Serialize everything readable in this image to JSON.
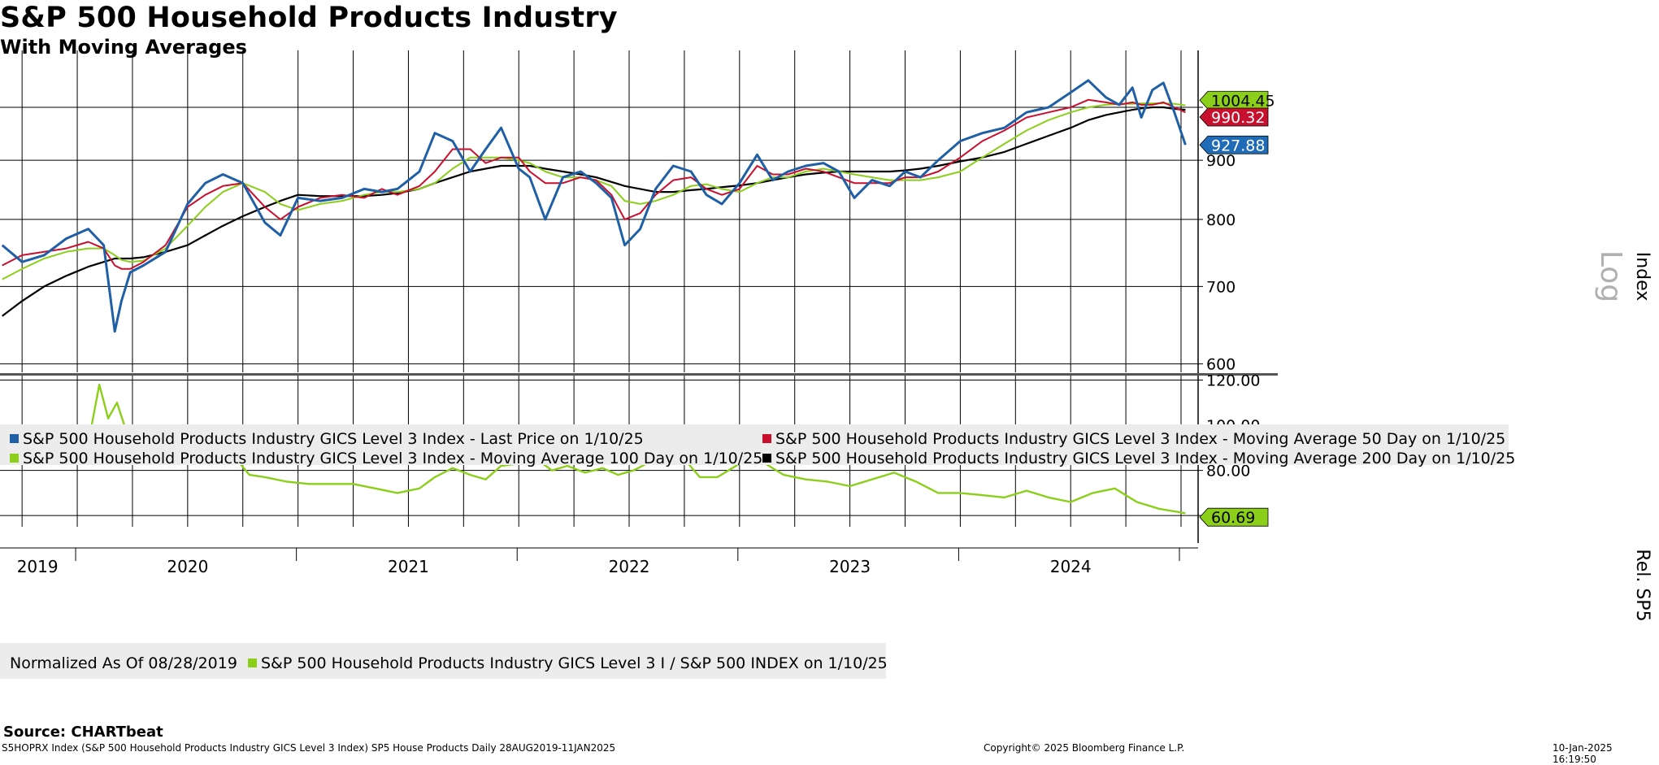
{
  "header": {
    "title": "S&P 500 Household Products Industry",
    "subtitle": "With Moving Averages",
    "source": "Source: CHARTbeat"
  },
  "footer": {
    "left": "S5HOPRX Index (S&P 500 Household Products Industry GICS Level 3 Index) SP5 House Products  Daily 28AUG2019-11JAN2025",
    "center": "Copyright© 2025 Bloomberg Finance L.P.",
    "right": "10-Jan-2025 16:19:50"
  },
  "chart_data": [
    {
      "type": "line",
      "panel": "price",
      "ylabel": "Index",
      "scale_label": "Log",
      "yscale": "log",
      "ylim": [
        590,
        1120
      ],
      "yticks": [
        600,
        700,
        800,
        900
      ],
      "x_year_labels": [
        "2019",
        "2020",
        "2021",
        "2022",
        "2023",
        "2024"
      ],
      "value_labels": [
        {
          "text": "1004.45",
          "series": "ma100",
          "color": "#8ccf1a"
        },
        {
          "text": "990.32",
          "series": "ma50",
          "color": "#c8102e"
        },
        {
          "text": "927.88",
          "series": "last",
          "color": "#1f6bb5"
        }
      ],
      "legend": [
        {
          "label": "S&P 500 Household Products Industry GICS Level 3 Index - Last Price on 1/10/25",
          "color": "#1f5fa6"
        },
        {
          "label": "S&P 500 Household Products Industry GICS Level 3 Index - Moving Average 50 Day on 1/10/25",
          "color": "#c8102e"
        },
        {
          "label": "S&P 500 Household Products Industry GICS Level 3 Index - Moving Average 100 Day on 1/10/25",
          "color": "#8ccf1a"
        },
        {
          "label": "S&P 500 Household Products Industry GICS Level 3 Index - Moving Average 200 Day on 1/10/25",
          "color": "#000000"
        }
      ],
      "x": [
        2019.66,
        2019.75,
        2019.85,
        2019.95,
        2020.05,
        2020.12,
        2020.17,
        2020.2,
        2020.24,
        2020.3,
        2020.4,
        2020.5,
        2020.58,
        2020.66,
        2020.75,
        2020.85,
        2020.92,
        2021.0,
        2021.1,
        2021.2,
        2021.3,
        2021.38,
        2021.45,
        2021.55,
        2021.62,
        2021.7,
        2021.78,
        2021.85,
        2021.92,
        2022.0,
        2022.05,
        2022.12,
        2022.2,
        2022.28,
        2022.35,
        2022.42,
        2022.48,
        2022.55,
        2022.62,
        2022.7,
        2022.78,
        2022.85,
        2022.92,
        2023.0,
        2023.08,
        2023.15,
        2023.22,
        2023.3,
        2023.38,
        2023.45,
        2023.52,
        2023.6,
        2023.68,
        2023.75,
        2023.82,
        2023.9,
        2024.0,
        2024.1,
        2024.2,
        2024.3,
        2024.4,
        2024.5,
        2024.58,
        2024.66,
        2024.72,
        2024.78,
        2024.82,
        2024.87,
        2024.92,
        2024.97,
        2025.02
      ],
      "series": [
        {
          "name": "Last Price",
          "key": "last",
          "color": "#1f5fa6",
          "values": [
            760,
            735,
            745,
            770,
            785,
            760,
            640,
            680,
            720,
            730,
            750,
            825,
            860,
            875,
            860,
            795,
            775,
            835,
            830,
            835,
            850,
            845,
            850,
            880,
            950,
            935,
            880,
            920,
            960,
            885,
            870,
            800,
            870,
            880,
            860,
            835,
            760,
            785,
            850,
            890,
            880,
            840,
            825,
            860,
            910,
            865,
            880,
            890,
            895,
            880,
            835,
            865,
            855,
            880,
            870,
            900,
            935,
            950,
            960,
            990,
            1000,
            1030,
            1055,
            1020,
            1005,
            1040,
            980,
            1035,
            1050,
            990,
            928
          ]
        },
        {
          "name": "Moving Average 50 Day",
          "key": "ma50",
          "color": "#c8102e",
          "values": [
            730,
            745,
            750,
            755,
            765,
            755,
            730,
            725,
            725,
            735,
            760,
            820,
            840,
            855,
            860,
            820,
            800,
            820,
            835,
            840,
            835,
            850,
            840,
            855,
            880,
            920,
            920,
            895,
            905,
            905,
            880,
            860,
            860,
            870,
            865,
            840,
            800,
            810,
            840,
            865,
            870,
            850,
            840,
            850,
            890,
            875,
            875,
            885,
            880,
            870,
            860,
            860,
            860,
            870,
            870,
            880,
            905,
            935,
            955,
            980,
            990,
            1000,
            1015,
            1010,
            1005,
            1010,
            1005,
            1005,
            1010,
            1000,
            990
          ]
        },
        {
          "name": "Moving Average 100 Day",
          "key": "ma100",
          "color": "#8ccf1a",
          "values": [
            710,
            725,
            740,
            750,
            755,
            755,
            745,
            738,
            735,
            737,
            755,
            790,
            820,
            845,
            860,
            845,
            825,
            815,
            825,
            830,
            840,
            845,
            845,
            850,
            860,
            885,
            905,
            905,
            905,
            900,
            895,
            880,
            870,
            870,
            865,
            855,
            830,
            825,
            830,
            840,
            855,
            858,
            850,
            845,
            860,
            870,
            870,
            880,
            885,
            880,
            875,
            870,
            865,
            865,
            865,
            870,
            880,
            905,
            930,
            955,
            975,
            990,
            1000,
            1005,
            1007,
            1007,
            1008,
            1008,
            1008,
            1007,
            1004
          ]
        },
        {
          "name": "Moving Average 200 Day",
          "key": "ma200",
          "color": "#000000",
          "values": [
            660,
            680,
            700,
            715,
            728,
            735,
            740,
            740,
            740,
            742,
            750,
            760,
            775,
            790,
            805,
            820,
            830,
            840,
            838,
            838,
            838,
            840,
            843,
            850,
            860,
            870,
            880,
            885,
            890,
            890,
            890,
            885,
            880,
            875,
            870,
            862,
            855,
            850,
            845,
            845,
            848,
            850,
            853,
            856,
            860,
            865,
            870,
            875,
            878,
            880,
            880,
            880,
            880,
            882,
            885,
            890,
            898,
            905,
            915,
            930,
            945,
            960,
            975,
            985,
            990,
            995,
            998,
            1000,
            1000,
            997,
            995
          ]
        }
      ]
    },
    {
      "type": "line",
      "panel": "relative",
      "ylabel": "Rel. SP5",
      "ylim": [
        55,
        122
      ],
      "yticks": [
        60.0,
        80.0,
        100.0,
        120.0
      ],
      "ytick_labels": [
        "80.00",
        "100.00",
        "120.00"
      ],
      "value_labels": [
        {
          "text": "60.69",
          "color": "#8ccf1a"
        }
      ],
      "legend_prefix": "Normalized As Of 08/28/2019",
      "legend": [
        {
          "label": "S&P 500 Household Products Industry GICS Level 3 I / S&P 500 INDEX on 1/10/25",
          "color": "#8ccf1a"
        }
      ],
      "x": [
        2019.66,
        2019.75,
        2019.85,
        2019.95,
        2020.05,
        2020.1,
        2020.14,
        2020.18,
        2020.22,
        2020.3,
        2020.4,
        2020.5,
        2020.58,
        2020.66,
        2020.72,
        2020.78,
        2020.85,
        2020.95,
        2021.05,
        2021.15,
        2021.25,
        2021.35,
        2021.45,
        2021.55,
        2021.62,
        2021.7,
        2021.78,
        2021.85,
        2021.92,
        2022.0,
        2022.08,
        2022.15,
        2022.22,
        2022.3,
        2022.38,
        2022.45,
        2022.52,
        2022.6,
        2022.68,
        2022.75,
        2022.82,
        2022.9,
        2023.0,
        2023.1,
        2023.2,
        2023.3,
        2023.4,
        2023.5,
        2023.6,
        2023.7,
        2023.8,
        2023.9,
        2024.0,
        2024.1,
        2024.2,
        2024.3,
        2024.4,
        2024.5,
        2024.6,
        2024.7,
        2024.8,
        2024.9,
        2025.02
      ],
      "values": [
        100,
        97,
        93,
        90,
        92,
        118,
        103,
        110,
        98,
        95,
        97,
        98,
        98,
        90,
        85,
        78,
        77,
        75,
        74,
        74,
        74,
        72,
        70,
        72,
        77,
        81,
        78,
        76,
        82,
        83,
        85,
        80,
        82,
        79,
        81,
        78,
        80,
        84,
        88,
        85,
        77,
        77,
        83,
        84,
        78,
        76,
        75,
        73,
        76,
        79,
        75,
        70,
        70,
        69,
        68,
        71,
        68,
        66,
        70,
        72,
        66,
        63,
        61
      ]
    }
  ]
}
